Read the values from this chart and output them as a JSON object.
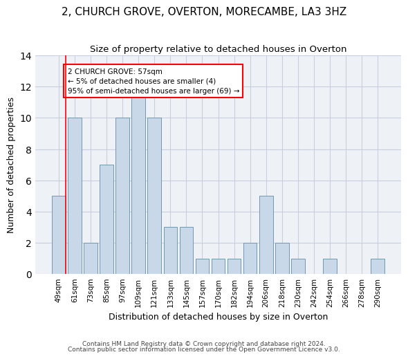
{
  "title": "2, CHURCH GROVE, OVERTON, MORECAMBE, LA3 3HZ",
  "subtitle": "Size of property relative to detached houses in Overton",
  "xlabel": "Distribution of detached houses by size in Overton",
  "ylabel": "Number of detached properties",
  "categories": [
    "49sqm",
    "61sqm",
    "73sqm",
    "85sqm",
    "97sqm",
    "109sqm",
    "121sqm",
    "133sqm",
    "145sqm",
    "157sqm",
    "170sqm",
    "182sqm",
    "194sqm",
    "206sqm",
    "218sqm",
    "230sqm",
    "242sqm",
    "254sqm",
    "266sqm",
    "278sqm",
    "290sqm"
  ],
  "values": [
    5,
    10,
    2,
    7,
    10,
    12,
    10,
    3,
    3,
    1,
    1,
    1,
    2,
    5,
    2,
    1,
    0,
    1,
    0,
    0,
    1
  ],
  "bar_color": "#c8d8e8",
  "bar_edge_color": "#7098b0",
  "annotation_text": "2 CHURCH GROVE: 57sqm\n← 5% of detached houses are smaller (4)\n95% of semi-detached houses are larger (69) →",
  "annotation_box_color": "white",
  "annotation_box_edge": "red",
  "ylim": [
    0,
    14
  ],
  "yticks": [
    0,
    2,
    4,
    6,
    8,
    10,
    12,
    14
  ],
  "footnote1": "Contains HM Land Registry data © Crown copyright and database right 2024.",
  "footnote2": "Contains public sector information licensed under the Open Government Licence v3.0.",
  "bg_color": "#eef2f7",
  "grid_color": "#c8cedd",
  "title_fontsize": 11,
  "subtitle_fontsize": 9.5,
  "xlabel_fontsize": 9,
  "ylabel_fontsize": 9,
  "tick_fontsize": 7.5
}
